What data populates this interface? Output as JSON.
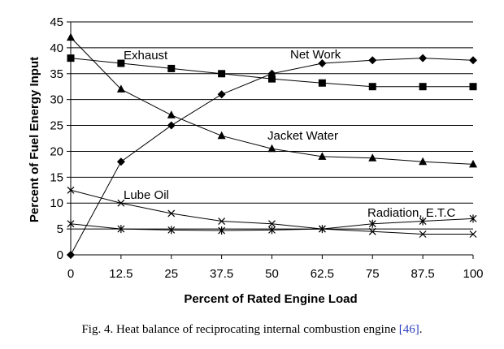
{
  "chart_data": {
    "type": "line",
    "xlabel": "Percent of Rated Engine Load",
    "ylabel": "Percent of Fuel Energy Input",
    "x": [
      0,
      12.5,
      25,
      37.5,
      50,
      62.5,
      75,
      87.5,
      100
    ],
    "x_tick_labels": [
      "0",
      "12.5",
      "25",
      "37.5",
      "50",
      "62.5",
      "75",
      "87.5",
      "100"
    ],
    "xlim": [
      0,
      100
    ],
    "ylim": [
      0,
      45
    ],
    "y_ticks": [
      0,
      5,
      10,
      15,
      20,
      25,
      30,
      35,
      40,
      45
    ],
    "grid": "horizontal",
    "series": [
      {
        "name": "Net Work",
        "marker": "diamond",
        "values": [
          0,
          18,
          25,
          31,
          35,
          37,
          37.6,
          38,
          37.6
        ]
      },
      {
        "name": "Exhaust",
        "marker": "square",
        "values": [
          38,
          37,
          36,
          35,
          34,
          33.2,
          32.5,
          32.5,
          32.5
        ]
      },
      {
        "name": "Jacket Water",
        "marker": "triangle",
        "values": [
          42,
          32,
          27,
          23,
          20.5,
          19,
          18.7,
          18,
          17.5
        ]
      },
      {
        "name": "Lube Oil",
        "marker": "x",
        "values": [
          12.5,
          10,
          8,
          6.5,
          6,
          5,
          4.5,
          4,
          4
        ]
      },
      {
        "name": "Radiation, E.T.C",
        "marker": "star",
        "values": [
          6,
          5,
          4.8,
          4.7,
          4.8,
          5,
          6,
          6.5,
          7
        ]
      }
    ]
  },
  "caption": {
    "text": "Fig. 4. Heat balance of reciprocating internal combustion engine ",
    "ref": "[46]",
    "end": "."
  }
}
